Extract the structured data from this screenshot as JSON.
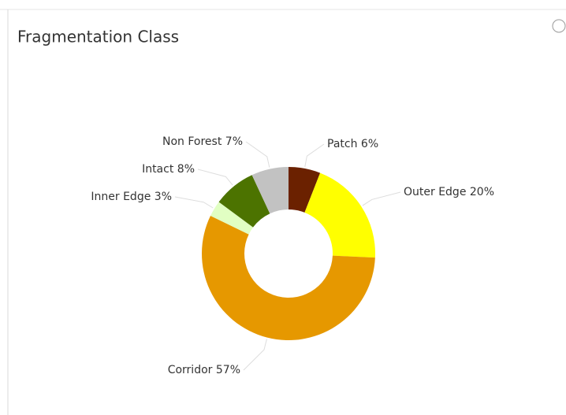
{
  "chart_data": {
    "type": "donut",
    "title": "Fragmentation Class",
    "categories": [
      "Patch",
      "Outer Edge",
      "Corridor",
      "Inner Edge",
      "Intact",
      "Non Forest"
    ],
    "values": [
      6,
      20,
      57,
      3,
      8,
      7
    ],
    "value_labels": [
      "6%",
      "20%",
      "57%",
      "3%",
      "8%",
      "7%"
    ],
    "colors": [
      "#6b2100",
      "#ffff00",
      "#e69800",
      "#e1ffc3",
      "#4c7300",
      "#c2c2c2"
    ]
  }
}
